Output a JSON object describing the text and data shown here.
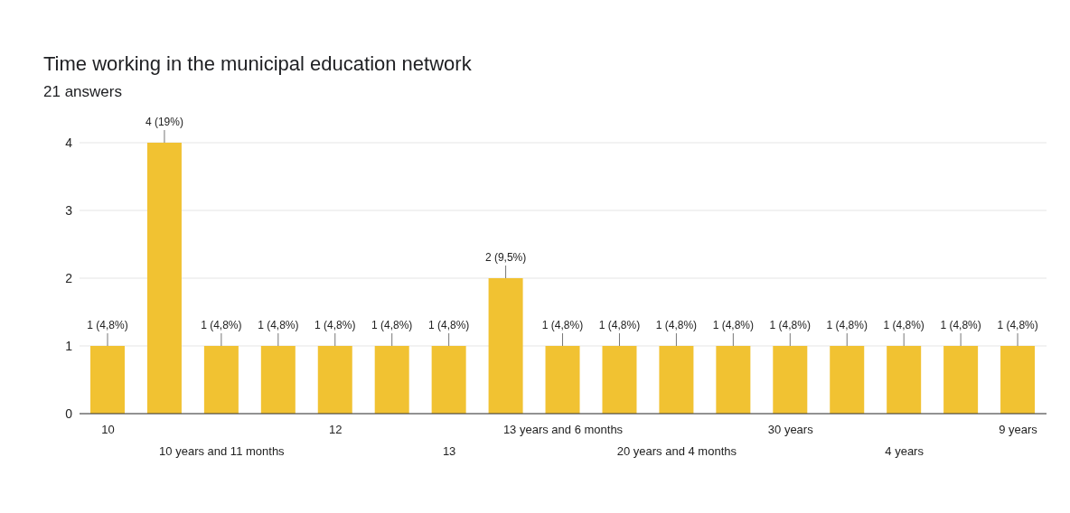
{
  "chart_data": {
    "type": "bar",
    "title": "Time working in the municipal education network",
    "subtitle": "21 answers",
    "categories": [
      "10",
      null,
      "10 years and 11 months",
      null,
      "12",
      null,
      "13",
      null,
      "13 years and 6 months",
      null,
      "20 years and 4 months",
      null,
      "30 years",
      null,
      "4 years",
      null,
      "9 years"
    ],
    "values": [
      1,
      4,
      1,
      1,
      1,
      1,
      1,
      2,
      1,
      1,
      1,
      1,
      1,
      1,
      1,
      1,
      1
    ],
    "value_labels": [
      "1 (4,8%)",
      "4 (19%)",
      "1 (4,8%)",
      "1 (4,8%)",
      "1 (4,8%)",
      "1 (4,8%)",
      "1 (4,8%)",
      "2 (9,5%)",
      "1 (4,8%)",
      "1 (4,8%)",
      "1 (4,8%)",
      "1 (4,8%)",
      "1 (4,8%)",
      "1 (4,8%)",
      "1 (4,8%)",
      "1 (4,8%)",
      "1 (4,8%)"
    ],
    "color": "#f1c232",
    "ylim": [
      0,
      4
    ],
    "yticks": [
      0,
      1,
      2,
      3,
      4
    ],
    "grid": "y"
  }
}
